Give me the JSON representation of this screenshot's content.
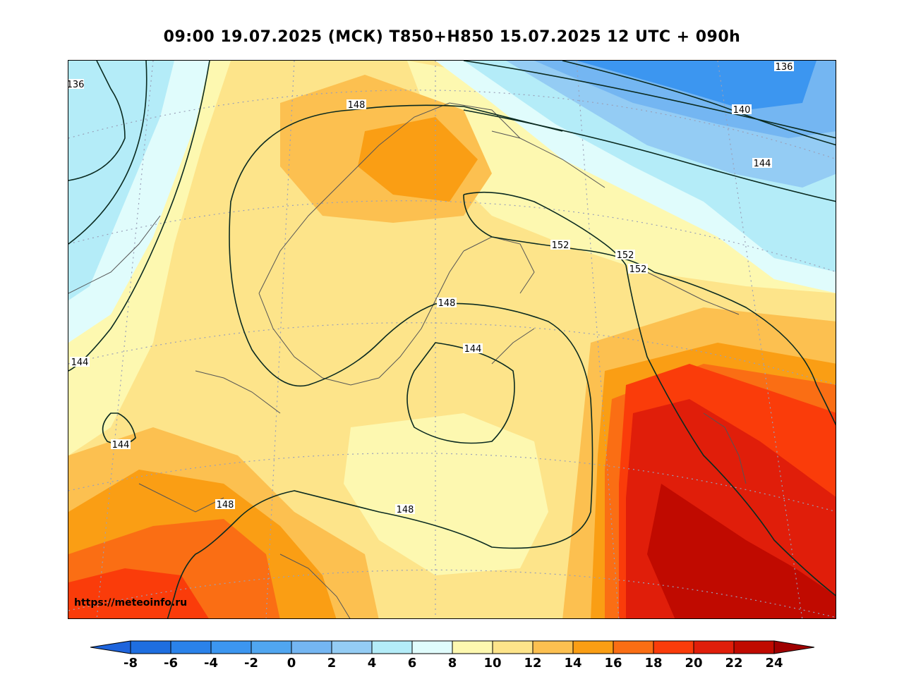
{
  "title": "09:00 19.07.2025 (МСК) T850+H850 15.07.2025 12 UTC + 090h",
  "watermark": "https://meteoinfo.ru",
  "colorbar": {
    "ticks": [
      "-8",
      "-6",
      "-4",
      "-2",
      "0",
      "2",
      "4",
      "6",
      "8",
      "10",
      "12",
      "14",
      "16",
      "18",
      "20",
      "22",
      "24"
    ],
    "colors": [
      "#1e6ee0",
      "#2a82ea",
      "#3c96f0",
      "#50a6f0",
      "#74b6f2",
      "#94ccf4",
      "#b4ecf8",
      "#e0fcfc",
      "#fdf8b0",
      "#fde48a",
      "#fcc050",
      "#fa9e14",
      "#fa6e14",
      "#fa3c0a",
      "#e01e0a",
      "#c00a00"
    ],
    "under_color": "#1e64dc",
    "over_color": "#a00000"
  },
  "contour_labels": {
    "c136a": "136",
    "c136b": "136",
    "c140": "140",
    "c144a": "144",
    "c144b": "144",
    "c144c": "144",
    "c144d": "144",
    "c148a": "148",
    "c148b": "148",
    "c148c": "148",
    "c148d": "148",
    "c152a": "152",
    "c152b": "152",
    "c152c": "152"
  }
}
